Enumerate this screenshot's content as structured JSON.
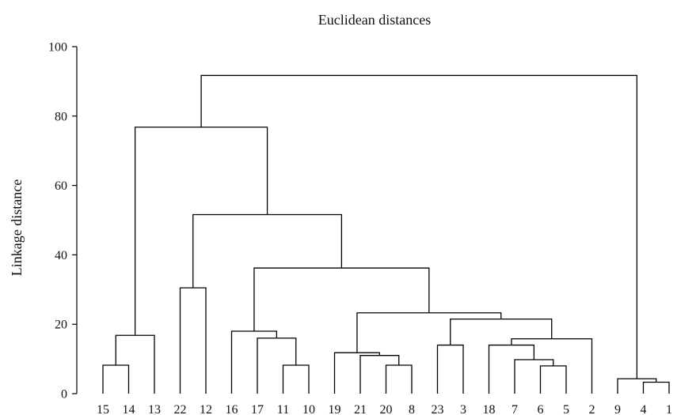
{
  "chart_data": {
    "type": "dendrogram",
    "title": "Euclidean distances",
    "xlabel": "",
    "ylabel": "Linkage distance",
    "ylim": [
      0,
      100
    ],
    "yticks": [
      0,
      20,
      40,
      60,
      80,
      100
    ],
    "grid": false,
    "leaves": [
      "15",
      "14",
      "13",
      "22",
      "12",
      "16",
      "17",
      "11",
      "10",
      "19",
      "21",
      "20",
      "8",
      "23",
      "3",
      "18",
      "7",
      "6",
      "5",
      "2",
      "9",
      "4",
      "1"
    ],
    "merges": [
      {
        "a": "L:15",
        "b": "L:14",
        "height": 8.2
      },
      {
        "a": "M:0",
        "b": "L:13",
        "height": 16.8
      },
      {
        "a": "L:22",
        "b": "L:12",
        "height": 30.5
      },
      {
        "a": "L:11",
        "b": "L:10",
        "height": 8.2
      },
      {
        "a": "L:17",
        "b": "M:3",
        "height": 16.0
      },
      {
        "a": "L:16",
        "b": "M:4",
        "height": 18.0
      },
      {
        "a": "L:20",
        "b": "L:8",
        "height": 8.2
      },
      {
        "a": "L:21",
        "b": "M:6",
        "height": 11.0
      },
      {
        "a": "L:19",
        "b": "M:7",
        "height": 11.8
      },
      {
        "a": "L:23",
        "b": "L:3",
        "height": 14.0
      },
      {
        "a": "L:6",
        "b": "L:5",
        "height": 8.0
      },
      {
        "a": "L:7",
        "b": "M:10",
        "height": 9.8
      },
      {
        "a": "L:18",
        "b": "M:11",
        "height": 14.0
      },
      {
        "a": "M:12",
        "b": "L:2",
        "height": 15.8
      },
      {
        "a": "M:9",
        "b": "M:13",
        "height": 21.5
      },
      {
        "a": "M:8",
        "b": "M:14",
        "height": 23.3
      },
      {
        "a": "M:5",
        "b": "M:15",
        "height": 36.2
      },
      {
        "a": "M:2",
        "b": "M:16",
        "height": 51.6
      },
      {
        "a": "M:1",
        "b": "M:17",
        "height": 76.8
      },
      {
        "a": "L:4",
        "b": "L:1",
        "height": 3.3
      },
      {
        "a": "L:9",
        "b": "M:19",
        "height": 4.3
      },
      {
        "a": "M:18",
        "b": "M:20",
        "height": 91.7
      }
    ]
  }
}
